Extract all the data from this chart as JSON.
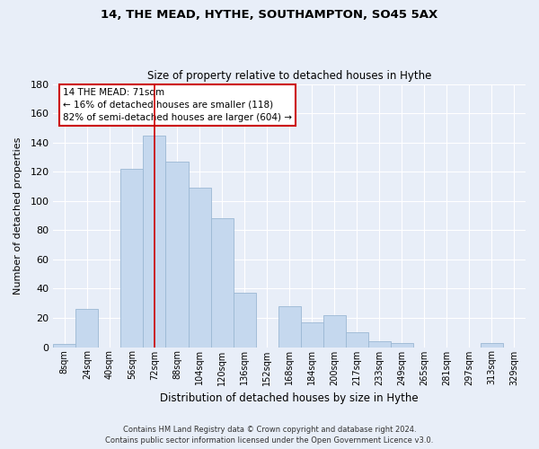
{
  "title": "14, THE MEAD, HYTHE, SOUTHAMPTON, SO45 5AX",
  "subtitle": "Size of property relative to detached houses in Hythe",
  "xlabel": "Distribution of detached houses by size in Hythe",
  "ylabel": "Number of detached properties",
  "bin_labels": [
    "8sqm",
    "24sqm",
    "40sqm",
    "56sqm",
    "72sqm",
    "88sqm",
    "104sqm",
    "120sqm",
    "136sqm",
    "152sqm",
    "168sqm",
    "184sqm",
    "200sqm",
    "217sqm",
    "233sqm",
    "249sqm",
    "265sqm",
    "281sqm",
    "297sqm",
    "313sqm",
    "329sqm"
  ],
  "bar_values": [
    2,
    26,
    0,
    122,
    145,
    127,
    109,
    88,
    37,
    0,
    28,
    17,
    22,
    10,
    4,
    3,
    0,
    0,
    0,
    3,
    0
  ],
  "bar_color": "#c5d8ee",
  "bar_edge_color": "#9bb8d4",
  "ylim": [
    0,
    180
  ],
  "yticks": [
    0,
    20,
    40,
    60,
    80,
    100,
    120,
    140,
    160,
    180
  ],
  "vline_x": 4,
  "vline_color": "#cc0000",
  "annotation_title": "14 THE MEAD: 71sqm",
  "annotation_line1": "← 16% of detached houses are smaller (118)",
  "annotation_line2": "82% of semi-detached houses are larger (604) →",
  "annotation_box_color": "#ffffff",
  "annotation_box_edge": "#cc0000",
  "footer1": "Contains HM Land Registry data © Crown copyright and database right 2024.",
  "footer2": "Contains public sector information licensed under the Open Government Licence v3.0.",
  "background_color": "#e8eef8",
  "plot_bg_color": "#e8eef8"
}
